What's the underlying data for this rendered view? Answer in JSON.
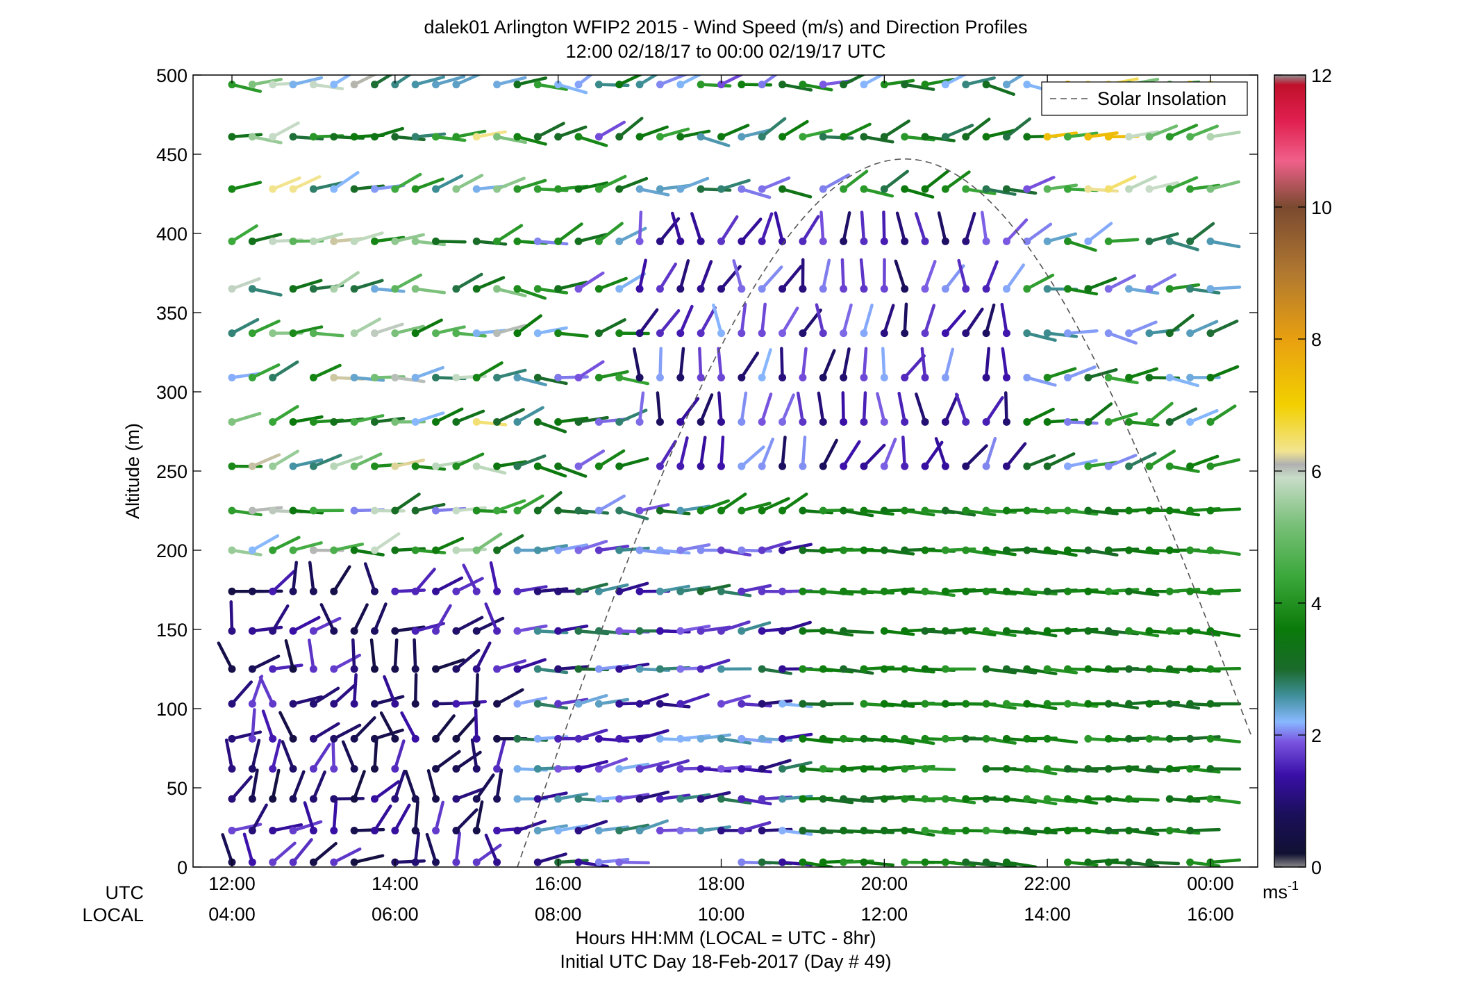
{
  "chart_data": {
    "type": "wind-barb-profile",
    "title": "dalek01 Arlington WFIP2 2015 - Wind Speed (m/s) and Direction Profiles",
    "subtitle": "12:00 02/18/17 to 00:00 02/19/17  UTC",
    "ylabel": "Altitude (m)",
    "ylim": [
      0,
      500
    ],
    "yticks": [
      "0",
      "50",
      "100",
      "150",
      "200",
      "250",
      "300",
      "350",
      "400",
      "450",
      "500"
    ],
    "xlim_hours": [
      11.6,
      24.5
    ],
    "x_tick_hours": [
      12,
      14,
      16,
      18,
      20,
      22,
      24
    ],
    "utc_row_label": "UTC",
    "local_row_label": "LOCAL",
    "utc_ticks": [
      "12:00",
      "14:00",
      "16:00",
      "18:00",
      "20:00",
      "22:00",
      "00:00"
    ],
    "local_ticks": [
      "04:00",
      "06:00",
      "08:00",
      "10:00",
      "12:00",
      "14:00",
      "16:00"
    ],
    "xlabel_line1": "Hours HH:MM  (LOCAL = UTC - 8hr)",
    "xlabel_line2": "Initial UTC Day 18-Feb-2017 (Day # 49)",
    "legend": {
      "entry": "Solar Insolation",
      "placement": "top-right",
      "style": "dashed"
    },
    "colorbar": {
      "label": "ms",
      "label_exponent": "-1",
      "range": [
        0,
        12
      ],
      "ticks": [
        "0",
        "2",
        "4",
        "6",
        "8",
        "10",
        "12"
      ],
      "stops": [
        {
          "v": 0.0,
          "c": "#888888"
        },
        {
          "v": 0.2,
          "c": "#111133"
        },
        {
          "v": 0.8,
          "c": "#1a0f5a"
        },
        {
          "v": 1.4,
          "c": "#3a0fa8"
        },
        {
          "v": 1.9,
          "c": "#7a55e0"
        },
        {
          "v": 2.2,
          "c": "#88b8ff"
        },
        {
          "v": 2.6,
          "c": "#3f8f9a"
        },
        {
          "v": 3.0,
          "c": "#1a6a2a"
        },
        {
          "v": 3.6,
          "c": "#0a7a0a"
        },
        {
          "v": 4.4,
          "c": "#3aa83a"
        },
        {
          "v": 5.2,
          "c": "#7ac07a"
        },
        {
          "v": 5.9,
          "c": "#c8dcc8"
        },
        {
          "v": 6.1,
          "c": "#b0b0b0"
        },
        {
          "v": 6.3,
          "c": "#f2e490"
        },
        {
          "v": 7.0,
          "c": "#f2d000"
        },
        {
          "v": 8.0,
          "c": "#e8a010"
        },
        {
          "v": 9.0,
          "c": "#b07830"
        },
        {
          "v": 10.0,
          "c": "#7a4a30"
        },
        {
          "v": 10.7,
          "c": "#f0608a"
        },
        {
          "v": 11.3,
          "c": "#e02050"
        },
        {
          "v": 11.85,
          "c": "#c0102a"
        },
        {
          "v": 12.0,
          "c": "#909090"
        }
      ]
    },
    "solar_insolation": {
      "description_hours_altitude": "bell-shaped dashed curve",
      "start_hour": 15.5,
      "peak_hour": 20.25,
      "peak_altitude_m": 447,
      "end_hour": 24.5,
      "end_altitude_m": 83
    },
    "altitudes_m": [
      3,
      23,
      43,
      62,
      81,
      103,
      125,
      149,
      174,
      200,
      225,
      253,
      281,
      309,
      337,
      365,
      395,
      428,
      461,
      494
    ],
    "wind_field_summary": [
      {
        "period_hours": [
          12.0,
          15.5
        ],
        "altitude_m": [
          0,
          200
        ],
        "speed_ms": [
          0.3,
          1.8
        ],
        "direction": "light and variable, mostly from the south and southwest"
      },
      {
        "period_hours": [
          12.0,
          15.5
        ],
        "altitude_m": [
          200,
          500
        ],
        "speed_ms": [
          2.0,
          6.5
        ],
        "direction": "westerly to southwesterly"
      },
      {
        "period_hours": [
          15.5,
          19.0
        ],
        "altitude_m": [
          0,
          200
        ],
        "speed_ms": [
          1.0,
          3.0
        ],
        "direction": "westerly"
      },
      {
        "period_hours": [
          17.0,
          21.5
        ],
        "altitude_m": [
          250,
          400
        ],
        "speed_ms": [
          0.8,
          2.2
        ],
        "direction": "southerly to southwesterly"
      },
      {
        "period_hours": [
          19.0,
          24.0
        ],
        "altitude_m": [
          0,
          250
        ],
        "speed_ms": [
          3.0,
          4.2
        ],
        "direction": "westerly"
      },
      {
        "period_hours": [
          22.0,
          24.0
        ],
        "altitude_m": [
          400,
          500
        ],
        "speed_ms": [
          4.0,
          7.5
        ],
        "direction": "westerly"
      }
    ]
  }
}
